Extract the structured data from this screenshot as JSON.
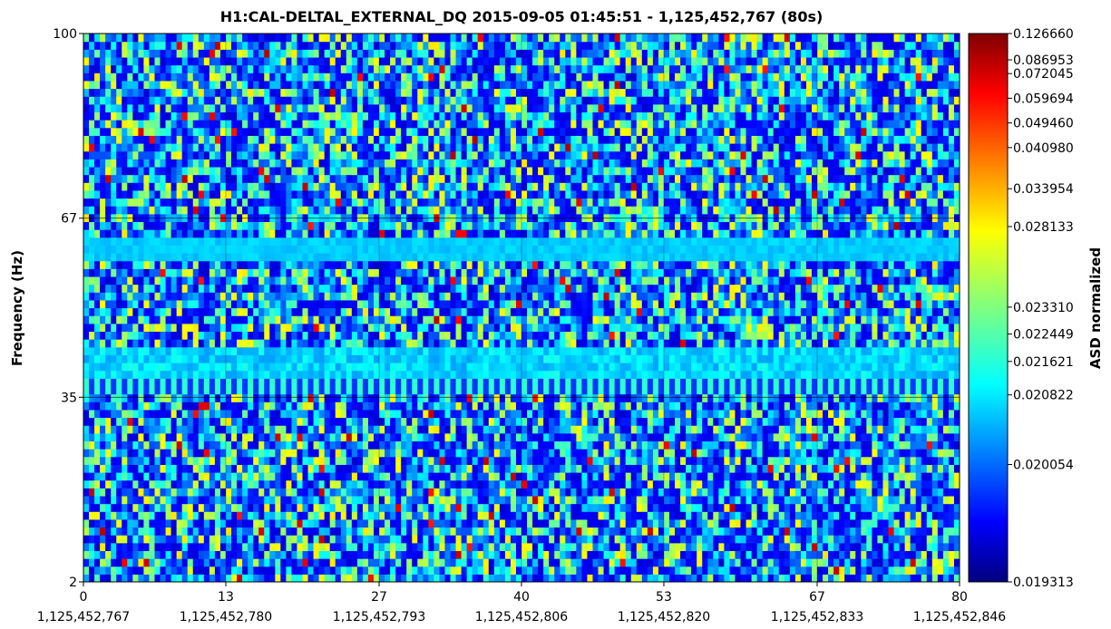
{
  "chart_data": {
    "type": "heatmap",
    "title": "H1:CAL-DELTAL_EXTERNAL_DQ 2015-09-05 01:45:51 - 1,125,452,767 (80s)",
    "xlabel": "",
    "ylabel": "Frequency (Hz)",
    "colorbar_label": "ASD normalized",
    "colormap": "jet",
    "xlim": [
      0,
      80
    ],
    "ylim": [
      2,
      100
    ],
    "x_ticks": [
      {
        "value": 0,
        "label": "0",
        "gps": "1,125,452,767"
      },
      {
        "value": 13,
        "label": "13",
        "gps": "1,125,452,780"
      },
      {
        "value": 27,
        "label": "27",
        "gps": "1,125,452,793"
      },
      {
        "value": 40,
        "label": "40",
        "gps": "1,125,452,806"
      },
      {
        "value": 53,
        "label": "53",
        "gps": "1,125,452,820"
      },
      {
        "value": 67,
        "label": "67",
        "gps": "1,125,452,833"
      },
      {
        "value": 80,
        "label": "80",
        "gps": "1,125,452,846"
      }
    ],
    "y_ticks": [
      {
        "value": 2,
        "label": "2"
      },
      {
        "value": 35,
        "label": "35"
      },
      {
        "value": 67,
        "label": "67"
      },
      {
        "value": 100,
        "label": "100"
      }
    ],
    "colorbar_ticks": [
      "0.126660",
      "0.086953",
      "0.072045",
      "0.059694",
      "0.049460",
      "0.040980",
      "0.033954",
      "0.028133",
      "0.023310",
      "0.022449",
      "0.021621",
      "0.020822",
      "0.020054",
      "0.019313"
    ],
    "grid": true,
    "features": [
      {
        "kind": "horizontal band",
        "y_range": [
          59,
          64
        ],
        "appearance": "uniform light blue"
      },
      {
        "kind": "striped band",
        "y_range": [
          35,
          44
        ],
        "appearance": "periodic cyan/blue stripes"
      }
    ],
    "colors": {
      "low": "#00007f",
      "mid": "#3fbfff",
      "high": "#7f0000"
    }
  }
}
